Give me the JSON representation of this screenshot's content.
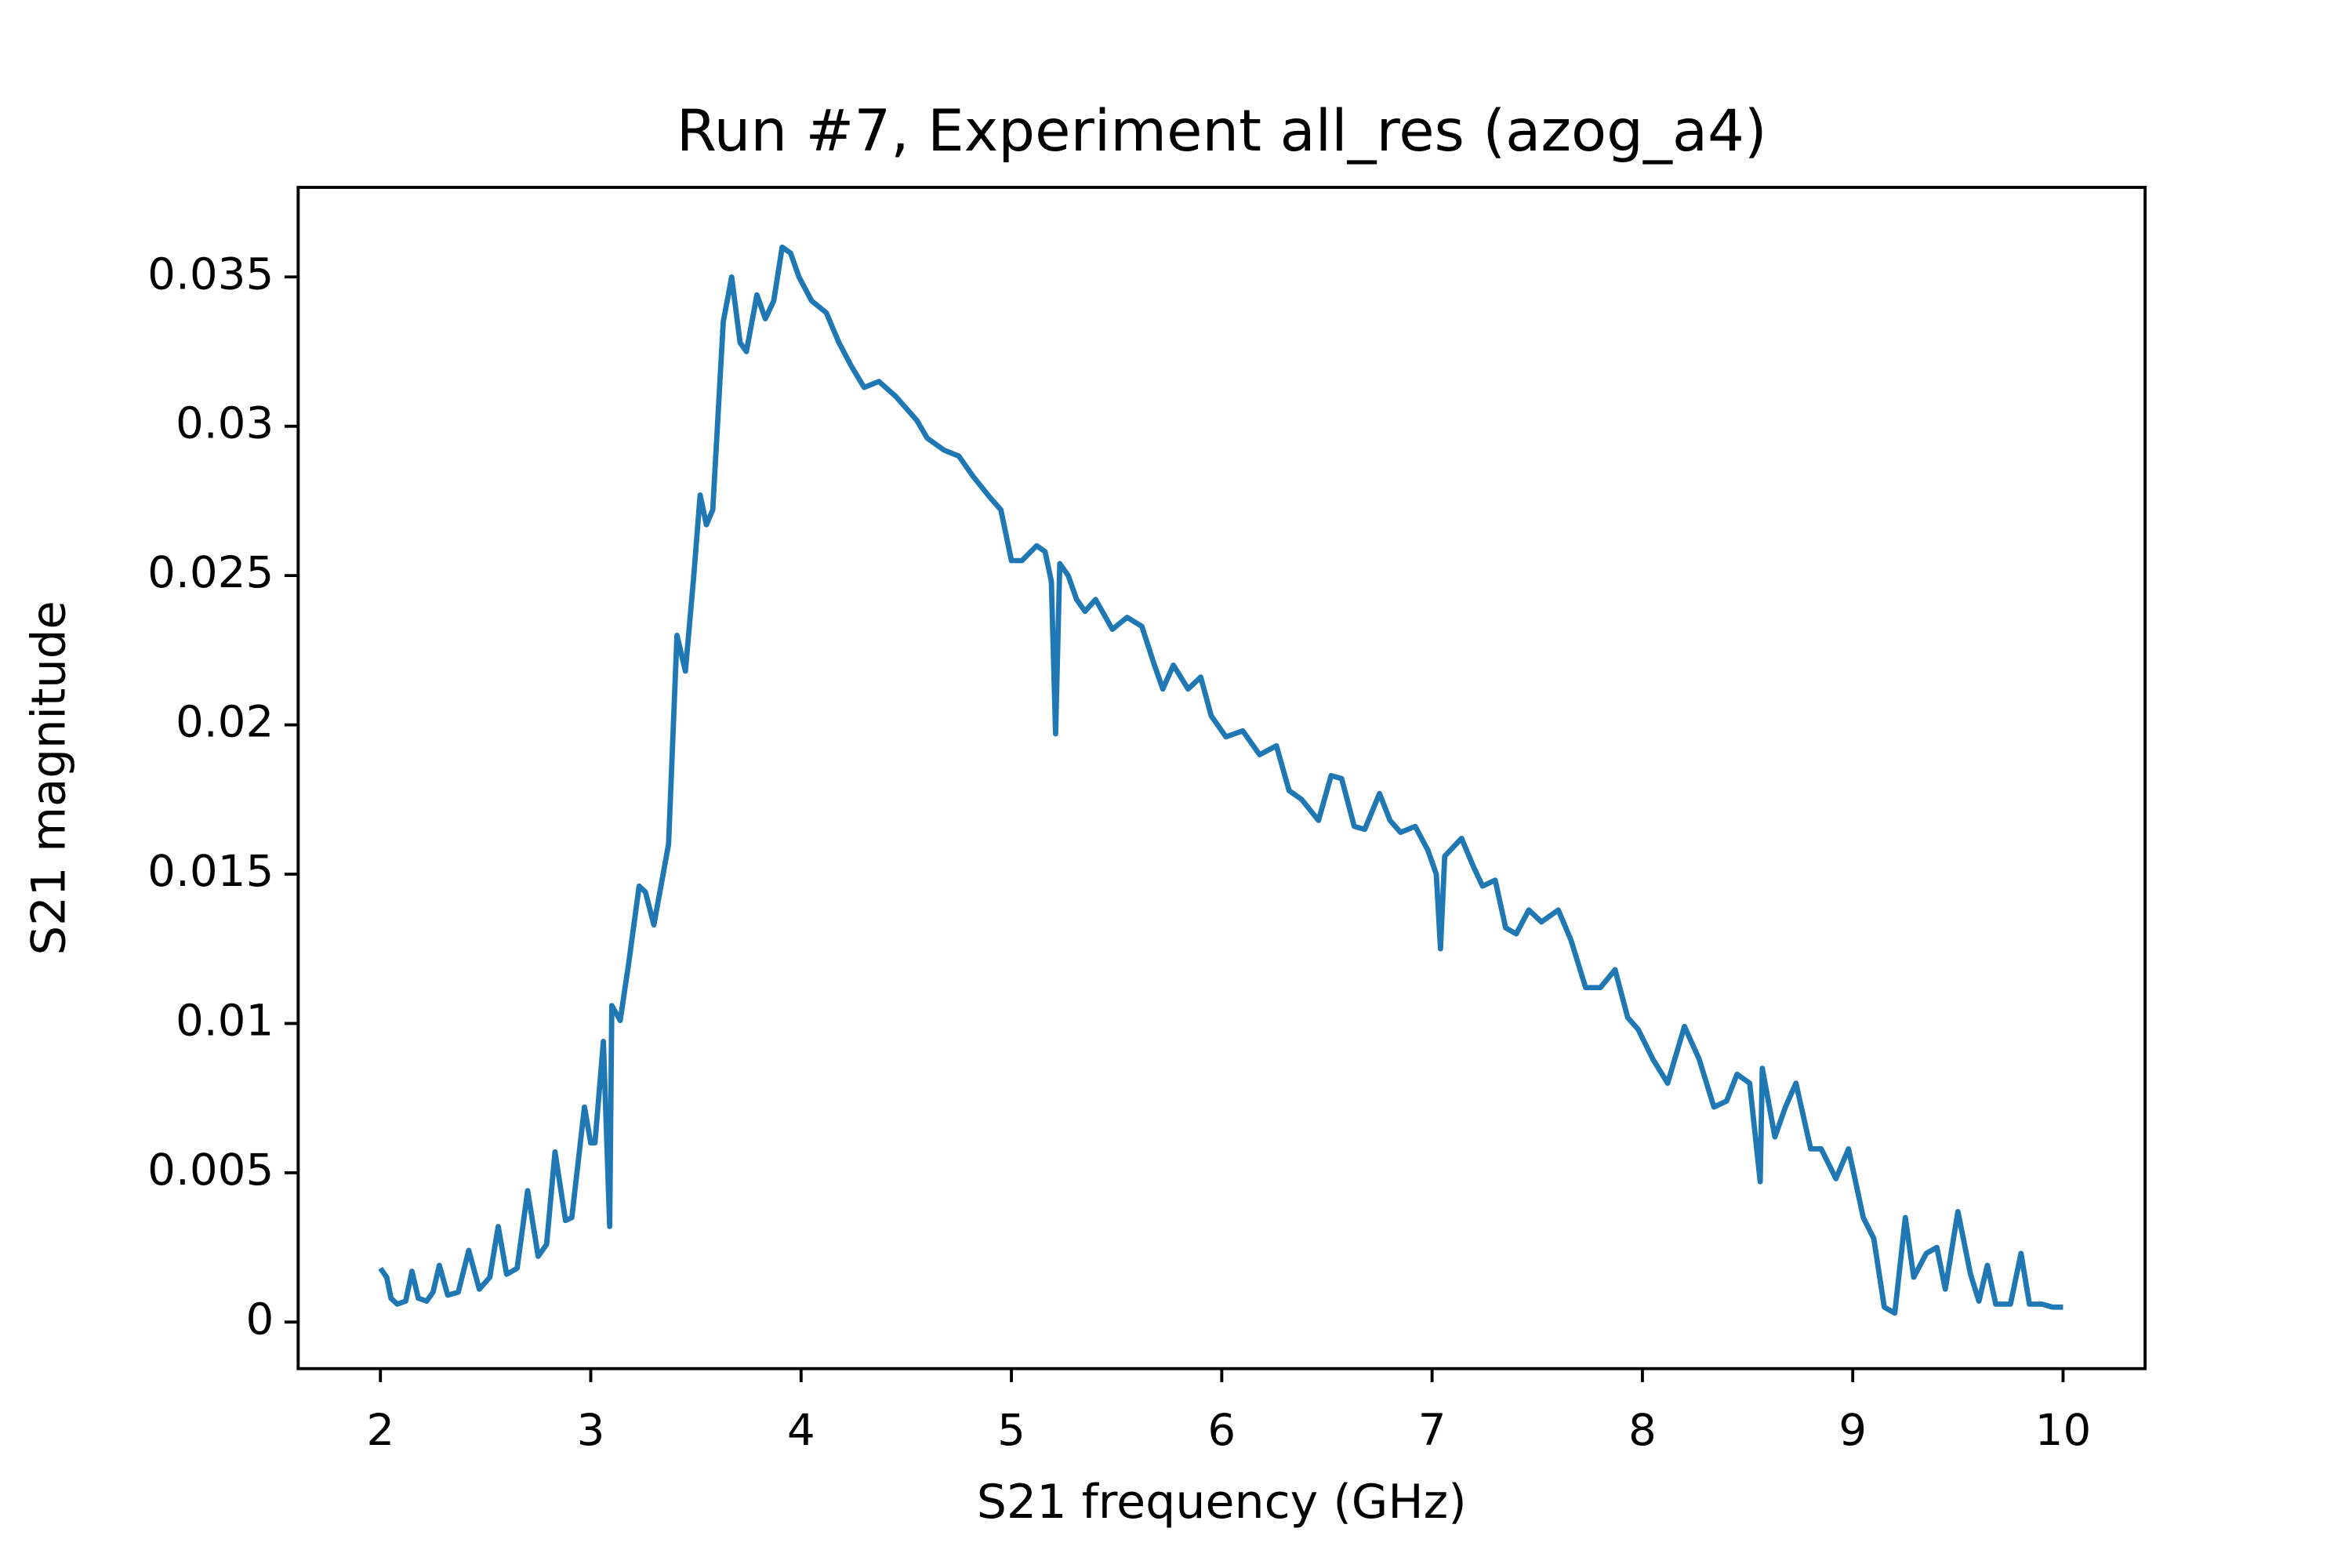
{
  "chart_data": {
    "type": "line",
    "title": "Run #7, Experiment all_res (azog_a4)",
    "x_label": "S21 frequency (GHz)",
    "y_label": "S21 magnitude",
    "xlim": [
      1.609,
      10.39
    ],
    "ylim": [
      -0.00156,
      0.038
    ],
    "xticks": [
      2,
      3,
      4,
      5,
      6,
      7,
      8,
      9,
      10
    ],
    "yticks": [
      0,
      0.005,
      0.01,
      0.015,
      0.02,
      0.025,
      0.03,
      0.035
    ],
    "grid": false,
    "x": [
      2.0,
      2.03,
      2.05,
      2.08,
      2.12,
      2.15,
      2.18,
      2.22,
      2.25,
      2.28,
      2.32,
      2.37,
      2.42,
      2.47,
      2.52,
      2.56,
      2.6,
      2.65,
      2.7,
      2.75,
      2.79,
      2.83,
      2.88,
      2.91,
      2.97,
      3.0,
      3.02,
      3.06,
      3.09,
      3.1,
      3.14,
      3.18,
      3.23,
      3.26,
      3.3,
      3.37,
      3.41,
      3.45,
      3.49,
      3.52,
      3.55,
      3.58,
      3.63,
      3.67,
      3.71,
      3.74,
      3.79,
      3.83,
      3.87,
      3.91,
      3.95,
      3.99,
      4.05,
      4.12,
      4.18,
      4.24,
      4.3,
      4.37,
      4.45,
      4.55,
      4.6,
      4.68,
      4.75,
      4.82,
      4.9,
      4.95,
      5.0,
      5.05,
      5.12,
      5.16,
      5.19,
      5.21,
      5.23,
      5.27,
      5.31,
      5.35,
      5.4,
      5.48,
      5.55,
      5.62,
      5.68,
      5.72,
      5.77,
      5.84,
      5.9,
      5.95,
      6.02,
      6.1,
      6.18,
      6.26,
      6.32,
      6.38,
      6.46,
      6.52,
      6.57,
      6.63,
      6.68,
      6.75,
      6.8,
      6.85,
      6.92,
      6.98,
      7.02,
      7.04,
      7.06,
      7.14,
      7.2,
      7.24,
      7.3,
      7.35,
      7.4,
      7.46,
      7.52,
      7.6,
      7.66,
      7.73,
      7.8,
      7.87,
      7.93,
      7.98,
      8.05,
      8.12,
      8.2,
      8.27,
      8.34,
      8.4,
      8.45,
      8.51,
      8.56,
      8.57,
      8.63,
      8.68,
      8.73,
      8.8,
      8.85,
      8.92,
      8.98,
      9.05,
      9.1,
      9.15,
      9.2,
      9.25,
      9.29,
      9.35,
      9.4,
      9.44,
      9.5,
      9.56,
      9.6,
      9.64,
      9.68,
      9.75,
      9.8,
      9.84,
      9.9,
      9.95,
      10.0
    ],
    "series": [
      {
        "color": "#1f77b4",
        "values": [
          0.0018,
          0.0015,
          0.0008,
          0.0006,
          0.0007,
          0.0017,
          0.0008,
          0.0007,
          0.001,
          0.0019,
          0.0009,
          0.001,
          0.0024,
          0.0011,
          0.0015,
          0.0032,
          0.0016,
          0.0018,
          0.0044,
          0.0022,
          0.0026,
          0.0057,
          0.0034,
          0.0035,
          0.0072,
          0.006,
          0.006,
          0.0094,
          0.0032,
          0.0106,
          0.0101,
          0.012,
          0.0146,
          0.0144,
          0.0133,
          0.016,
          0.023,
          0.0218,
          0.025,
          0.0277,
          0.0267,
          0.0272,
          0.0335,
          0.035,
          0.0328,
          0.0325,
          0.0344,
          0.0336,
          0.0342,
          0.036,
          0.0358,
          0.035,
          0.0342,
          0.0338,
          0.0328,
          0.032,
          0.0313,
          0.0315,
          0.031,
          0.0302,
          0.0296,
          0.0292,
          0.029,
          0.0283,
          0.0276,
          0.0272,
          0.0255,
          0.0255,
          0.026,
          0.0258,
          0.0248,
          0.0197,
          0.0254,
          0.025,
          0.0242,
          0.0238,
          0.0242,
          0.0232,
          0.0236,
          0.0233,
          0.022,
          0.0212,
          0.022,
          0.0212,
          0.0216,
          0.0203,
          0.0196,
          0.0198,
          0.019,
          0.0193,
          0.0178,
          0.0175,
          0.0168,
          0.0183,
          0.0182,
          0.0166,
          0.0165,
          0.0177,
          0.0168,
          0.0164,
          0.0166,
          0.0158,
          0.015,
          0.0125,
          0.0156,
          0.0162,
          0.0152,
          0.0146,
          0.0148,
          0.0132,
          0.013,
          0.0138,
          0.0134,
          0.0138,
          0.0128,
          0.0112,
          0.0112,
          0.0118,
          0.0102,
          0.0098,
          0.0088,
          0.008,
          0.0099,
          0.0088,
          0.0072,
          0.0074,
          0.0083,
          0.008,
          0.0047,
          0.0085,
          0.0062,
          0.0072,
          0.008,
          0.0058,
          0.0058,
          0.0048,
          0.0058,
          0.0035,
          0.0028,
          0.0005,
          0.0003,
          0.0035,
          0.0015,
          0.0023,
          0.0025,
          0.0011,
          0.0037,
          0.0016,
          0.0007,
          0.0019,
          0.0006,
          0.0006,
          0.0023,
          0.0006,
          0.0006,
          0.0005,
          0.0005
        ]
      }
    ]
  }
}
